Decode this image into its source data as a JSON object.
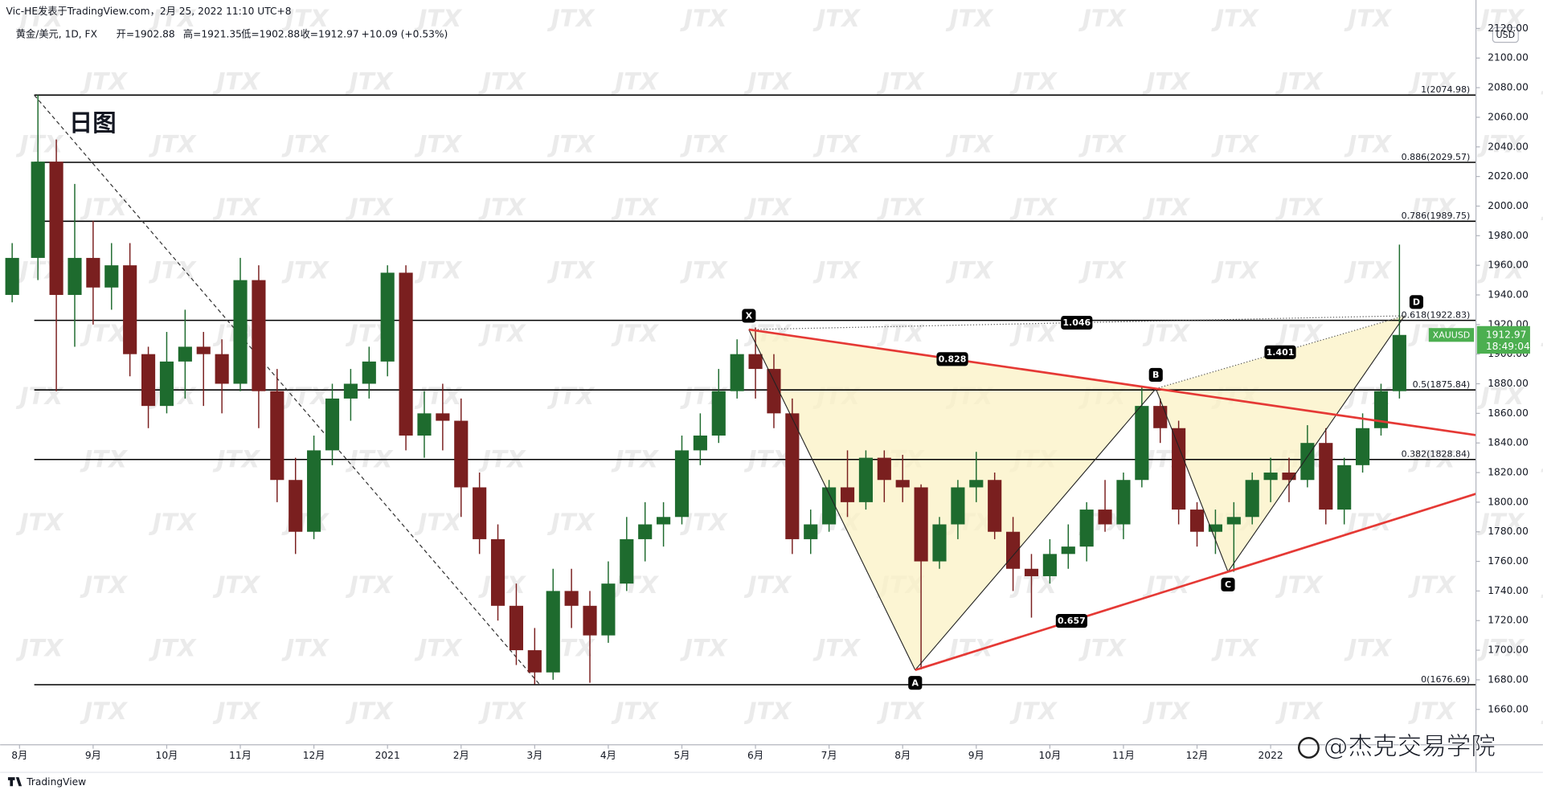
{
  "header": {
    "author_line": "Vic-HE发表于TradingView.com，2月 25, 2022 11:10 UTC+8",
    "symbol": "黄金/美元, 1D, FX",
    "open": "开=1902.88",
    "high": "高=1921.35",
    "low": "低=1902.88",
    "close": "收=1912.97",
    "change": "+10.09 (+0.53%)"
  },
  "chart_data": {
    "type": "candlestick",
    "title": "日图",
    "symbol": "XAUUSD",
    "currency": "USD",
    "last_price": 1912.97,
    "countdown": "18:49:04",
    "colors": {
      "up": "#1e6b2e",
      "down": "#7a1f1f",
      "tag": "#4caf50"
    },
    "x": [
      -0.1,
      0.25,
      0.5,
      0.75,
      1,
      1.25,
      1.5,
      1.75,
      2,
      2.25,
      2.5,
      2.75,
      3,
      3.25,
      3.5,
      3.75,
      4,
      4.25,
      4.5,
      4.75,
      5,
      5.25,
      5.5,
      5.75,
      6,
      6.25,
      6.5,
      6.75,
      7,
      7.25,
      7.5,
      7.75,
      8,
      8.25,
      8.5,
      8.75,
      9,
      9.25,
      9.5,
      9.75,
      10,
      10.25,
      10.5,
      10.75,
      11,
      11.25,
      11.5,
      11.75,
      12,
      12.25,
      12.5,
      12.75,
      13,
      13.25,
      13.5,
      13.75,
      14,
      14.25,
      14.5,
      14.75,
      15,
      15.25,
      15.5,
      15.75,
      16,
      16.25,
      16.5,
      16.75,
      17,
      17.25,
      17.5,
      17.75,
      18,
      18.25,
      18.5,
      18.75
    ],
    "open": [
      1940,
      1965,
      2030,
      1940,
      1965,
      1945,
      1960,
      1900,
      1865,
      1895,
      1905,
      1900,
      1880,
      1950,
      1875,
      1815,
      1780,
      1835,
      1870,
      1880,
      1895,
      1955,
      1845,
      1860,
      1855,
      1810,
      1775,
      1730,
      1700,
      1685,
      1740,
      1730,
      1710,
      1745,
      1775,
      1785,
      1790,
      1835,
      1845,
      1875,
      1900,
      1890,
      1860,
      1775,
      1785,
      1810,
      1800,
      1830,
      1815,
      1810,
      1760,
      1785,
      1810,
      1815,
      1780,
      1755,
      1750,
      1765,
      1770,
      1795,
      1785,
      1815,
      1865,
      1850,
      1795,
      1780,
      1785,
      1790,
      1815,
      1820,
      1815,
      1840,
      1795,
      1825,
      1850,
      1875
    ],
    "high": [
      1975,
      2075,
      2045,
      2015,
      1990,
      1975,
      1975,
      1905,
      1915,
      1930,
      1915,
      1910,
      1965,
      1960,
      1890,
      1830,
      1845,
      1880,
      1890,
      1905,
      1960,
      1960,
      1875,
      1880,
      1870,
      1820,
      1785,
      1745,
      1715,
      1755,
      1755,
      1740,
      1760,
      1790,
      1800,
      1800,
      1845,
      1860,
      1890,
      1910,
      1918,
      1900,
      1870,
      1795,
      1815,
      1835,
      1835,
      1835,
      1832,
      1812,
      1790,
      1815,
      1834,
      1820,
      1790,
      1765,
      1775,
      1785,
      1800,
      1815,
      1820,
      1878,
      1870,
      1855,
      1800,
      1795,
      1800,
      1820,
      1830,
      1830,
      1852,
      1850,
      1830,
      1860,
      1880,
      1974
    ],
    "low": [
      1935,
      1950,
      1875,
      1905,
      1920,
      1930,
      1885,
      1850,
      1860,
      1870,
      1865,
      1860,
      1875,
      1850,
      1800,
      1765,
      1775,
      1825,
      1855,
      1870,
      1885,
      1835,
      1830,
      1835,
      1790,
      1765,
      1720,
      1690,
      1677,
      1680,
      1715,
      1678,
      1705,
      1740,
      1760,
      1770,
      1785,
      1825,
      1840,
      1870,
      1870,
      1850,
      1765,
      1765,
      1780,
      1790,
      1795,
      1800,
      1800,
      1687,
      1755,
      1775,
      1800,
      1775,
      1740,
      1722,
      1745,
      1755,
      1760,
      1780,
      1775,
      1810,
      1840,
      1785,
      1770,
      1765,
      1753,
      1785,
      1800,
      1800,
      1810,
      1785,
      1785,
      1820,
      1845,
      1870
    ],
    "close": [
      1965,
      2030,
      1940,
      1965,
      1945,
      1960,
      1900,
      1865,
      1895,
      1905,
      1900,
      1880,
      1950,
      1875,
      1815,
      1780,
      1835,
      1870,
      1880,
      1895,
      1955,
      1845,
      1860,
      1855,
      1810,
      1775,
      1730,
      1700,
      1685,
      1740,
      1730,
      1710,
      1745,
      1775,
      1785,
      1790,
      1835,
      1845,
      1875,
      1900,
      1890,
      1860,
      1775,
      1785,
      1810,
      1800,
      1830,
      1815,
      1810,
      1760,
      1785,
      1810,
      1815,
      1780,
      1755,
      1750,
      1765,
      1770,
      1795,
      1785,
      1815,
      1865,
      1850,
      1795,
      1780,
      1785,
      1790,
      1815,
      1820,
      1815,
      1840,
      1795,
      1825,
      1850,
      1875,
      1912.97
    ],
    "xlim": [
      -0.13,
      19.79
    ],
    "xticks": [
      {
        "value": 0,
        "label": "8月"
      },
      {
        "value": 1,
        "label": "9月"
      },
      {
        "value": 2,
        "label": "10月"
      },
      {
        "value": 3,
        "label": "11月"
      },
      {
        "value": 4,
        "label": "12月"
      },
      {
        "value": 5,
        "label": "2021"
      },
      {
        "value": 6,
        "label": "2月"
      },
      {
        "value": 7,
        "label": "3月"
      },
      {
        "value": 8,
        "label": "4月"
      },
      {
        "value": 9,
        "label": "5月"
      },
      {
        "value": 10,
        "label": "6月"
      },
      {
        "value": 11,
        "label": "7月"
      },
      {
        "value": 12,
        "label": "8月"
      },
      {
        "value": 13,
        "label": "9月"
      },
      {
        "value": 14,
        "label": "10月"
      },
      {
        "value": 15,
        "label": "11月"
      },
      {
        "value": 16,
        "label": "12月"
      },
      {
        "value": 17,
        "label": "2022"
      }
    ],
    "ylim": [
      1636.1,
      2124.6
    ],
    "yticks": [
      {
        "value": 1660,
        "label": "1660.00"
      },
      {
        "value": 1680,
        "label": "1680.00"
      },
      {
        "value": 1700,
        "label": "1700.00"
      },
      {
        "value": 1720,
        "label": "1720.00"
      },
      {
        "value": 1740,
        "label": "1740.00"
      },
      {
        "value": 1760,
        "label": "1760.00"
      },
      {
        "value": 1780,
        "label": "1780.00"
      },
      {
        "value": 1800,
        "label": "1800.00"
      },
      {
        "value": 1820,
        "label": "1820.00"
      },
      {
        "value": 1840,
        "label": "1840.00"
      },
      {
        "value": 1860,
        "label": "1860.00"
      },
      {
        "value": 1880,
        "label": "1880.00"
      },
      {
        "value": 1900,
        "label": "1900.00"
      },
      {
        "value": 1920,
        "label": "1920.00"
      },
      {
        "value": 1940,
        "label": "1940.00"
      },
      {
        "value": 1960,
        "label": "1960.00"
      },
      {
        "value": 1980,
        "label": "1980.00"
      },
      {
        "value": 2000,
        "label": "2000.00"
      },
      {
        "value": 2020,
        "label": "2020.00"
      },
      {
        "value": 2040,
        "label": "2040.00"
      },
      {
        "value": 2060,
        "label": "2060.00"
      },
      {
        "value": 2080,
        "label": "2080.00"
      },
      {
        "value": 2100,
        "label": "2100.00"
      },
      {
        "value": 2120,
        "label": "2120.00"
      }
    ],
    "fib": {
      "x": [
        0.2,
        7.07
      ],
      "levels": [
        {
          "value": 2074.98,
          "label": "1(2074.98)"
        },
        {
          "value": 2029.57,
          "label": "0.886(2029.57)"
        },
        {
          "value": 1989.75,
          "label": "0.786(1989.75)"
        },
        {
          "value": 1922.83,
          "label": "0.618(1922.83)"
        },
        {
          "value": 1875.84,
          "label": "0.5(1875.84)"
        },
        {
          "value": 1828.84,
          "label": "0.382(1828.84)"
        },
        {
          "value": 1676.69,
          "label": "0(1676.69)"
        }
      ]
    },
    "pattern": {
      "points": [
        {
          "label": "X",
          "x": 9.91,
          "y": 1916.6
        },
        {
          "label": "A",
          "x": 12.17,
          "y": 1686.6
        },
        {
          "label": "B",
          "x": 15.44,
          "y": 1876.7
        },
        {
          "label": "C",
          "x": 16.42,
          "y": 1753
        },
        {
          "label": "D",
          "x": 18.82,
          "y": 1925.9
        }
      ],
      "ratios": [
        1.046,
        0.828,
        1.401,
        0.657
      ],
      "fill": "#fbf1c4",
      "trend_color": "#e53935"
    },
    "watermark": "JTX"
  },
  "footer": {
    "brand": "TradingView",
    "signature": "@杰克交易学院"
  }
}
